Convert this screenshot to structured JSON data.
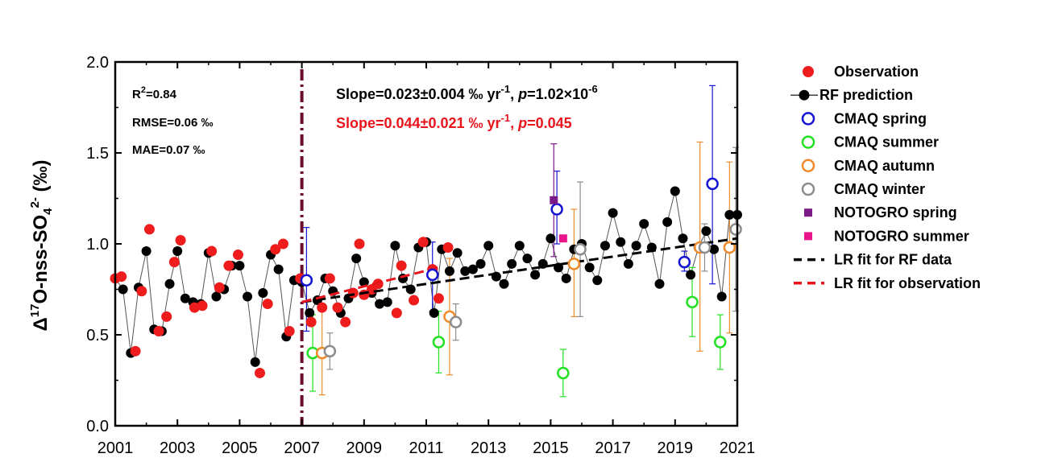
{
  "chart_data": {
    "type": "scatter",
    "ylabel": {
      "main": "Δ",
      "sup1": "17",
      "mid": "O-nss-SO",
      "sub": "4",
      "sup2": "2-",
      "tail": " (‰)"
    },
    "xlim": [
      2001,
      2021
    ],
    "ylim": [
      0,
      2
    ],
    "xticks": [
      "2001",
      "2003",
      "2005",
      "2007",
      "2009",
      "2011",
      "2013",
      "2015",
      "2017",
      "2019",
      "2021"
    ],
    "yticks": [
      "0.0",
      "0.5",
      "1.0",
      "1.5",
      "2.0"
    ],
    "stats": {
      "r2": {
        "base": "R",
        "sup": "2",
        "rest": "=0.84"
      },
      "rmse": "RMSE=0.06 ‰",
      "mae": "MAE=0.07 ‰"
    },
    "slope_rf": {
      "a": "Slope=0.023±0.004 ‰ yr",
      "sup": "-1",
      "b": ", ",
      "p": "p",
      "c": "=1.02×10",
      "sup2": "-6",
      "color": "#000000"
    },
    "slope_obs": {
      "a": "Slope=0.044±0.021 ‰ yr",
      "sup": "-1",
      "b": ", ",
      "p": "p",
      "c": "=0.045",
      "color": "#e8141b"
    },
    "divider_x": 2007.0,
    "colors": {
      "observation": "#ee1c1c",
      "rf": "#000000",
      "spring": "#1414d2",
      "summer": "#22e022",
      "autumn": "#f08a2a",
      "winter": "#8c8c8c",
      "noto_spring": "#7a1a86",
      "noto_summer": "#e8168a",
      "divider": "#6b0b2e",
      "lr_rf": "#000000",
      "lr_obs": "#e8141b"
    },
    "rf_series": {
      "name": "RF prediction",
      "x": [
        2001.0,
        2001.25,
        2001.5,
        2001.75,
        2002.0,
        2002.25,
        2002.5,
        2002.75,
        2003.0,
        2003.25,
        2003.5,
        2003.75,
        2004.0,
        2004.25,
        2004.5,
        2004.75,
        2005.0,
        2005.25,
        2005.5,
        2005.75,
        2006.0,
        2006.25,
        2006.5,
        2006.75,
        2007.0,
        2007.25,
        2007.5,
        2007.75,
        2008.0,
        2008.25,
        2008.5,
        2008.75,
        2009.0,
        2009.25,
        2009.5,
        2009.75,
        2010.0,
        2010.25,
        2010.5,
        2010.75,
        2011.0,
        2011.25,
        2011.5,
        2011.75,
        2012.0,
        2012.25,
        2012.5,
        2012.75,
        2013.0,
        2013.25,
        2013.5,
        2013.75,
        2014.0,
        2014.25,
        2014.5,
        2014.75,
        2015.0,
        2015.25,
        2015.5,
        2015.75,
        2016.0,
        2016.25,
        2016.5,
        2016.75,
        2017.0,
        2017.25,
        2017.5,
        2017.75,
        2018.0,
        2018.25,
        2018.5,
        2018.75,
        2019.0,
        2019.25,
        2019.5,
        2019.75,
        2020.0,
        2020.25,
        2020.5,
        2020.75,
        2021.0
      ],
      "y": [
        0.81,
        0.75,
        0.4,
        0.76,
        0.96,
        0.53,
        0.52,
        0.78,
        0.96,
        0.7,
        0.68,
        0.67,
        0.95,
        0.71,
        0.75,
        0.88,
        0.88,
        0.71,
        0.35,
        0.73,
        0.94,
        0.86,
        0.49,
        0.8,
        0.79,
        0.62,
        0.69,
        0.81,
        0.74,
        0.62,
        0.7,
        0.92,
        0.79,
        0.73,
        0.67,
        0.68,
        0.99,
        0.81,
        0.75,
        0.98,
        1.01,
        0.62,
        0.97,
        0.85,
        0.95,
        0.85,
        0.86,
        0.89,
        0.99,
        0.82,
        0.78,
        0.89,
        0.99,
        0.92,
        0.83,
        0.89,
        1.03,
        0.87,
        0.81,
        0.97,
        1.0,
        0.87,
        0.8,
        0.99,
        1.17,
        1.01,
        0.89,
        0.99,
        1.11,
        0.98,
        0.78,
        1.12,
        1.29,
        1.03,
        0.83,
        0.98,
        1.07,
        0.97,
        0.71,
        1.16,
        1.16
      ]
    },
    "observation": {
      "name": "Observation",
      "x": [
        2001.0,
        2001.2,
        2001.65,
        2001.85,
        2002.1,
        2002.4,
        2002.65,
        2002.9,
        2003.1,
        2003.55,
        2003.8,
        2004.1,
        2004.35,
        2004.65,
        2004.95,
        2005.65,
        2005.9,
        2006.15,
        2006.4,
        2006.6,
        2006.95,
        2007.3,
        2007.65,
        2007.9,
        2008.15,
        2008.4,
        2008.65,
        2008.85,
        2009.0,
        2009.25,
        2009.45,
        2010.05,
        2010.2,
        2010.6,
        2010.9,
        2011.2,
        2011.4,
        2011.7
      ],
      "y": [
        0.81,
        0.82,
        0.41,
        0.74,
        1.08,
        0.52,
        0.6,
        0.9,
        1.02,
        0.65,
        0.66,
        0.96,
        0.76,
        0.88,
        0.94,
        0.29,
        0.67,
        0.97,
        1.0,
        0.52,
        0.81,
        0.57,
        0.65,
        0.81,
        0.65,
        0.57,
        0.73,
        1.0,
        0.72,
        0.75,
        0.78,
        0.62,
        0.88,
        0.69,
        1.01,
        0.86,
        0.7,
        0.98
      ]
    },
    "cmaq_spring": {
      "name": "CMAQ spring",
      "points": [
        [
          2007.15,
          0.8,
          0.52,
          1.09
        ],
        [
          2011.2,
          0.83,
          0.63,
          1.01
        ],
        [
          2015.2,
          1.19,
          1.0,
          1.4
        ],
        [
          2019.3,
          0.9,
          0.85,
          0.96
        ],
        [
          2020.2,
          1.33,
          0.78,
          1.87
        ]
      ]
    },
    "cmaq_summer": {
      "name": "CMAQ summer",
      "points": [
        [
          2007.35,
          0.4,
          0.19,
          0.61
        ],
        [
          2011.4,
          0.46,
          0.29,
          0.63
        ],
        [
          2015.4,
          0.29,
          0.16,
          0.42
        ],
        [
          2019.55,
          0.68,
          0.49,
          0.87
        ],
        [
          2020.45,
          0.46,
          0.31,
          0.61
        ]
      ]
    },
    "cmaq_autumn": {
      "name": "CMAQ autumn",
      "points": [
        [
          2007.65,
          0.4,
          0.17,
          0.63
        ],
        [
          2011.75,
          0.6,
          0.28,
          0.92
        ],
        [
          2015.75,
          0.89,
          0.6,
          1.19
        ],
        [
          2019.8,
          0.98,
          0.41,
          1.56
        ],
        [
          2020.75,
          0.98,
          0.51,
          1.45
        ]
      ]
    },
    "cmaq_winter": {
      "name": "CMAQ winter",
      "points": [
        [
          2007.9,
          0.41,
          0.31,
          0.51
        ],
        [
          2011.95,
          0.57,
          0.47,
          0.67
        ],
        [
          2015.95,
          0.97,
          0.6,
          1.34
        ],
        [
          2019.95,
          0.98,
          0.85,
          1.11
        ],
        [
          2020.95,
          1.08,
          0.63,
          1.53
        ]
      ]
    },
    "noto_spring": {
      "name": "NOTOGRO spring",
      "points": [
        [
          2015.1,
          1.24,
          0.93,
          1.55
        ]
      ]
    },
    "noto_summer": {
      "name": "NOTOGRO summer",
      "points": [
        [
          2015.4,
          1.03,
          1.03,
          1.03
        ]
      ]
    },
    "lr_rf": {
      "name": "LR fit for RF data",
      "x": [
        2007.0,
        2021.0
      ],
      "y": [
        0.68,
        1.03
      ]
    },
    "lr_obs": {
      "name": "LR fit for observation",
      "x": [
        2007.0,
        2011.4
      ],
      "y": [
        0.68,
        0.87
      ]
    },
    "legend": [
      {
        "key": "observation",
        "label": "Observation",
        "marker": "filled-circle"
      },
      {
        "key": "rf",
        "label": "RF prediction",
        "marker": "line-circle"
      },
      {
        "key": "spring",
        "label": "CMAQ spring",
        "marker": "open-circle"
      },
      {
        "key": "summer",
        "label": "CMAQ summer",
        "marker": "open-circle"
      },
      {
        "key": "autumn",
        "label": "CMAQ autumn",
        "marker": "open-circle"
      },
      {
        "key": "winter",
        "label": "CMAQ winter",
        "marker": "open-circle"
      },
      {
        "key": "noto_spring",
        "label": "NOTOGRO spring",
        "marker": "square"
      },
      {
        "key": "noto_summer",
        "label": "NOTOGRO summer",
        "marker": "square"
      },
      {
        "key": "lr_rf",
        "label": "LR fit for RF data",
        "marker": "dash"
      },
      {
        "key": "lr_obs",
        "label": "LR fit for observation",
        "marker": "dash"
      }
    ]
  }
}
